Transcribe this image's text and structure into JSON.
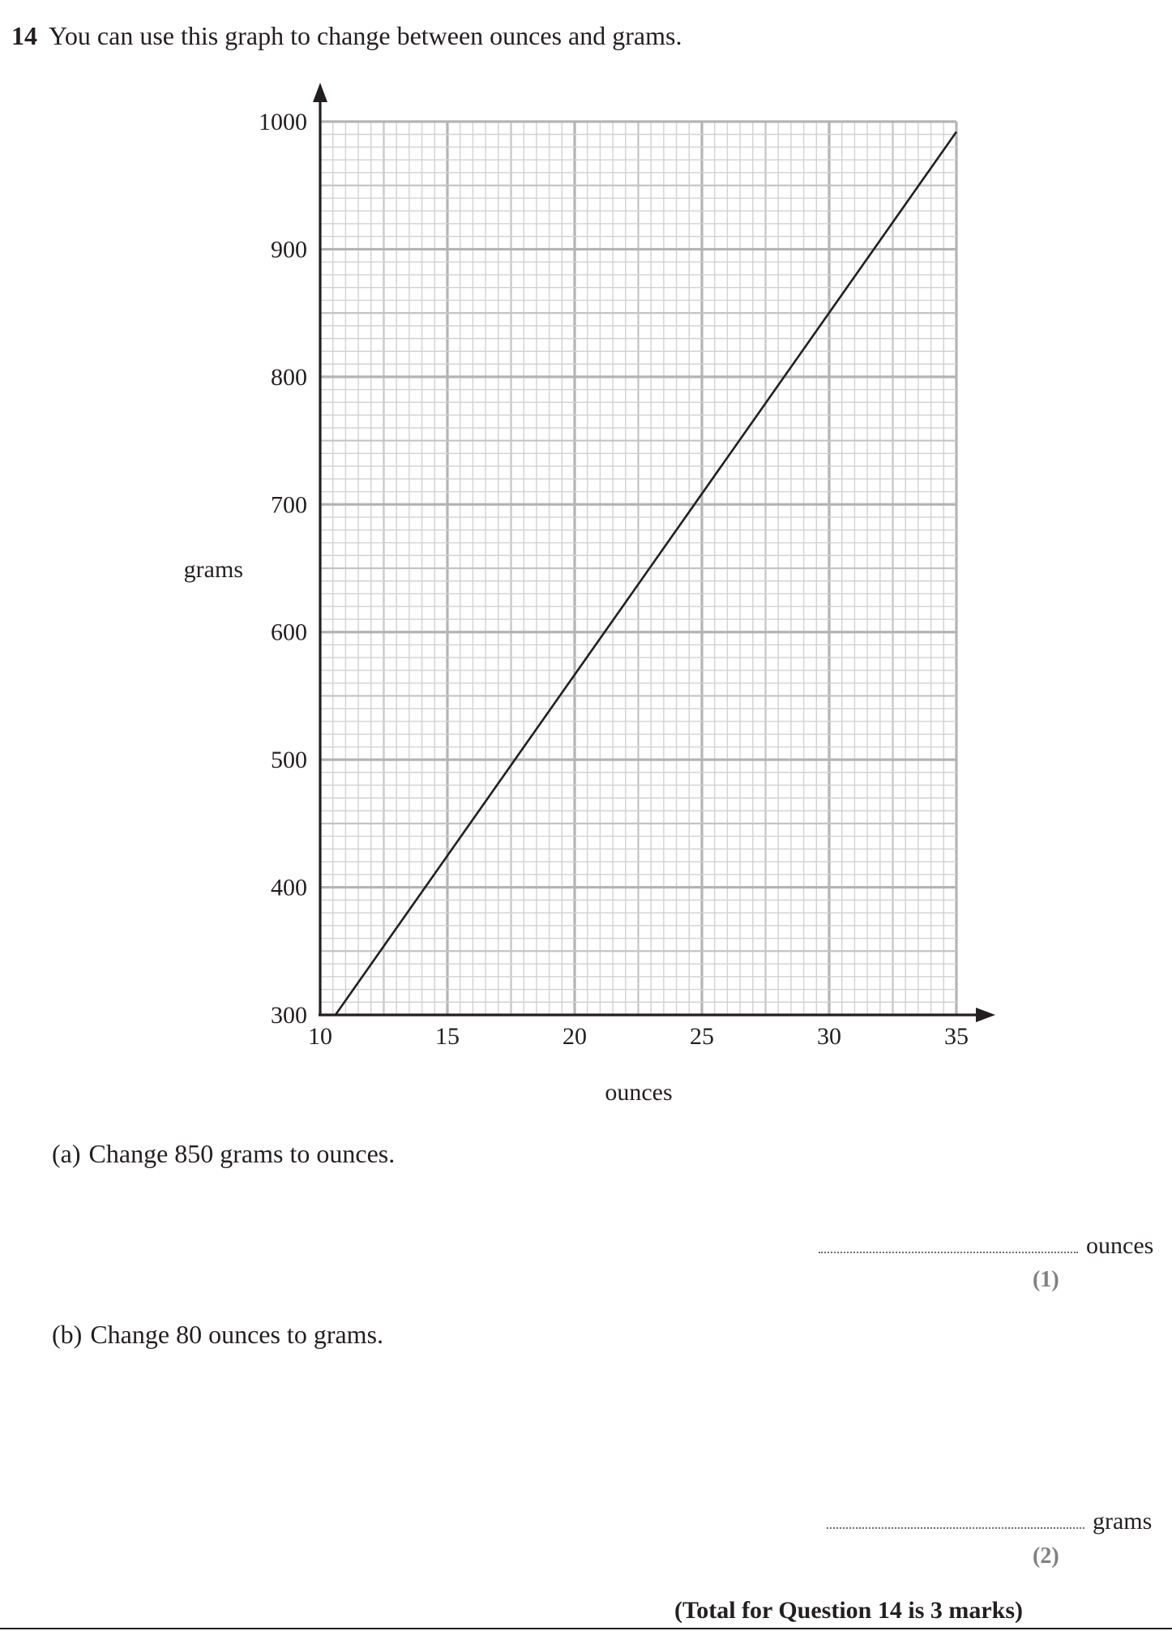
{
  "question": {
    "number": "14",
    "text": "You can use this graph to change between ounces and grams."
  },
  "chart_data": {
    "type": "line",
    "xlabel": "ounces",
    "ylabel": "grams",
    "xlim": [
      10,
      35
    ],
    "ylim": [
      300,
      1000
    ],
    "x_ticks": [
      "10",
      "15",
      "20",
      "25",
      "30",
      "35"
    ],
    "y_ticks": [
      "300",
      "400",
      "500",
      "600",
      "700",
      "800",
      "900",
      "1000"
    ],
    "grid": true,
    "series": [
      {
        "x": [
          10.6,
          35
        ],
        "y": [
          300,
          992
        ]
      }
    ]
  },
  "parts": [
    {
      "letter": "(a)",
      "text": "Change 850 grams to ounces.",
      "answer_unit": "ounces",
      "marks": "(1)"
    },
    {
      "letter": "(b)",
      "text": "Change 80 ounces to grams.",
      "answer_unit": "grams",
      "marks": "(2)"
    }
  ],
  "total": "(Total for Question 14 is 3 marks)"
}
